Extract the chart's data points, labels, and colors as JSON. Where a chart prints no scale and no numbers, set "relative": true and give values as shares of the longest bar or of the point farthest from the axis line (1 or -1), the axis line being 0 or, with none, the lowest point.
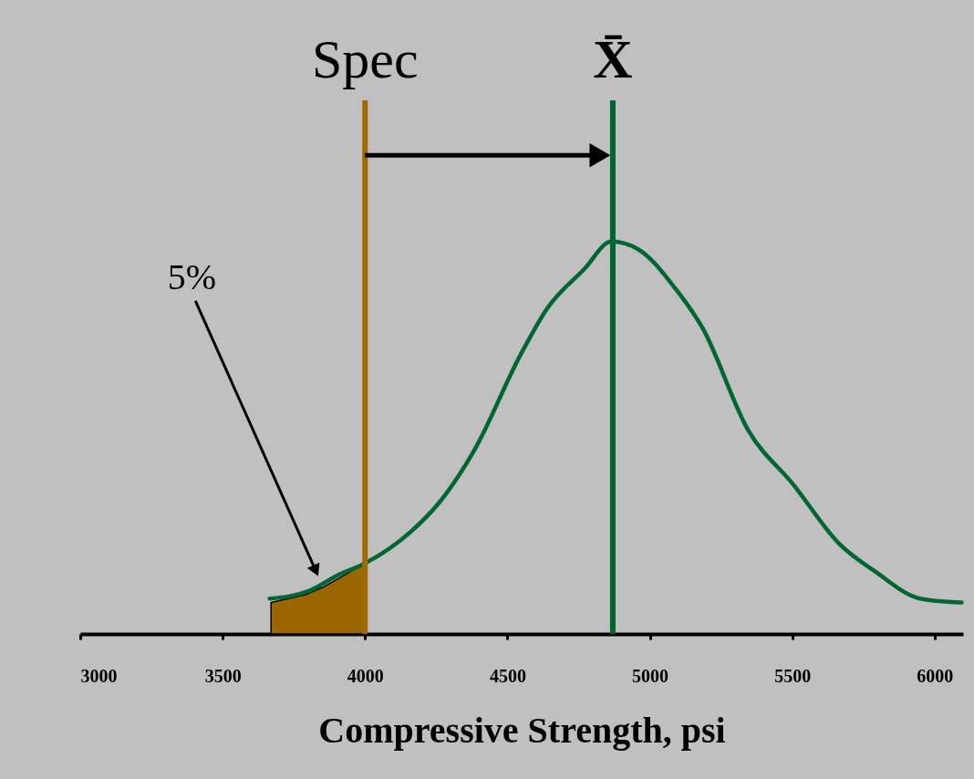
{
  "chart_data": {
    "type": "line",
    "xlabel": "Compressive Strength, psi",
    "relative": true,
    "xlim": [
      3000,
      6100
    ],
    "xticks": [
      3000,
      3500,
      4000,
      4500,
      5000,
      5500,
      6000
    ],
    "series": [
      {
        "color": "#006633",
        "x": [
          3665,
          3805,
          3905,
          4000,
          4160,
          4255,
          4385,
          4545,
          4640,
          4770,
          4865,
          4960,
          5090,
          5185,
          5345,
          5505,
          5665,
          5790,
          5950,
          6095
        ],
        "values": [
          0.09,
          0.11,
          0.15,
          0.18,
          0.26,
          0.33,
          0.47,
          0.71,
          0.83,
          0.93,
          1,
          0.98,
          0.88,
          0.78,
          0.52,
          0.38,
          0.23,
          0.16,
          0.09,
          0.08
        ]
      },
      {
        "type": "area",
        "color": "#996600",
        "x": [
          3670,
          3790,
          3855,
          4000
        ],
        "values": [
          0.08,
          0.1,
          0.12,
          0.18
        ]
      }
    ],
    "ref_lines": [
      {
        "axis": "x",
        "value": 4000,
        "label": "Spec",
        "color": "#a06a00"
      },
      {
        "axis": "x",
        "value": 4870,
        "label": "X̄",
        "color": "#006633"
      }
    ],
    "annotations": [
      "5%"
    ]
  }
}
